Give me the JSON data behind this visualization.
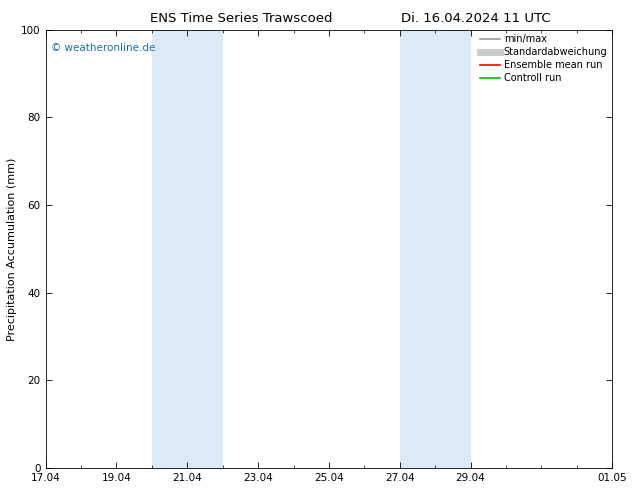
{
  "title": "ENS Time Series Trawscoed",
  "title2": "Di. 16.04.2024 11 UTC",
  "ylabel": "Precipitation Accumulation (mm)",
  "ylim": [
    0,
    100
  ],
  "background_color": "#ffffff",
  "plot_bg_color": "#ffffff",
  "watermark": "© weatheronline.de",
  "watermark_color": "#1a6faf",
  "shade_bands": [
    {
      "xstart": 20.0,
      "xend": 21.0,
      "color": "#daeaf6"
    },
    {
      "xstart": 21.0,
      "xend": 22.0,
      "color": "#daeaf6"
    },
    {
      "xstart": 27.0,
      "xend": 28.0,
      "color": "#daeaf6"
    },
    {
      "xstart": 28.0,
      "xend": 29.0,
      "color": "#daeaf6"
    }
  ],
  "x_ticks_major": [
    17,
    19,
    21,
    23,
    25,
    27,
    29,
    33
  ],
  "x_tick_labels": [
    "17.04",
    "19.04",
    "21.04",
    "23.04",
    "25.04",
    "27.04",
    "29.04",
    "01.05"
  ],
  "x_ticks_minor": [
    18,
    20,
    22,
    24,
    26,
    28,
    30,
    31,
    32
  ],
  "xlim": [
    17,
    33
  ],
  "yticks": [
    0,
    20,
    40,
    60,
    80,
    100
  ],
  "legend_entries": [
    {
      "label": "min/max",
      "color": "#999999",
      "lw": 1.2,
      "type": "line"
    },
    {
      "label": "Standardabweichung",
      "color": "#cccccc",
      "lw": 5,
      "type": "line"
    },
    {
      "label": "Ensemble mean run",
      "color": "#ff0000",
      "lw": 1.2,
      "type": "line"
    },
    {
      "label": "Controll run",
      "color": "#00bb00",
      "lw": 1.2,
      "type": "line"
    }
  ],
  "title_fontsize": 9.5,
  "ylabel_fontsize": 8,
  "tick_fontsize": 7.5,
  "legend_fontsize": 7,
  "watermark_fontsize": 7.5
}
